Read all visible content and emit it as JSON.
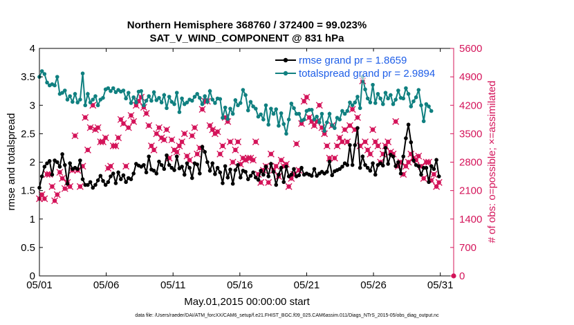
{
  "chart_data": {
    "type": "line",
    "title": "Northern Hemisphere 368760 / 372400 = 99.023%",
    "subtitle": "SAT_V_WIND_COMPONENT @ 831 hPa",
    "xlabel": "May.01,2015 00:00:00 start",
    "ylabel_left": "rmse and totalspread",
    "ylabel_right": "# of obs: o=possible; ×=assimilated",
    "footnote": "data file: /Users/raeder/DAI/ATM_forcXX/CAM6_setup/f.e21.FHIST_BGC.f09_025.CAM6assim.011/Diags_NTrS_2015-05/obs_diag_output.nc",
    "x_ticks": [
      "05/01",
      "05/06",
      "05/11",
      "05/16",
      "05/21",
      "05/26",
      "05/31"
    ],
    "x_tick_days": [
      1,
      6,
      11,
      16,
      21,
      26,
      31
    ],
    "xlim": [
      1,
      32
    ],
    "ylim_left": [
      0,
      4
    ],
    "y_ticks_left": [
      "0",
      "0.5",
      "1",
      "1.5",
      "2",
      "2.5",
      "3",
      "3.5",
      "4"
    ],
    "ylim_right": [
      0,
      5600
    ],
    "y_ticks_right": [
      "0",
      "700",
      "1400",
      "2100",
      "2800",
      "3500",
      "4200",
      "4900",
      "5600"
    ],
    "legend": [
      "rmse grand pr = 1.8659",
      "totalspread grand pr = 2.9894"
    ],
    "legend_position": "top-right",
    "colors": {
      "rmse": "#000000",
      "spread": "#108080",
      "obs": "#d4145a",
      "legend_text": "#1e5ee8",
      "right_axis": "#d4145a"
    },
    "series": [
      {
        "name": "rmse grand pr = 1.8659",
        "axis": "left",
        "values": [
          1.55,
          1.75,
          1.92,
          1.98,
          2.02,
          1.78,
          2.03,
          2.0,
          1.92,
          2.14,
          1.95,
          1.62,
          1.98,
          1.88,
          1.9,
          1.88,
          2.03,
          1.7,
          1.6,
          1.6,
          1.65,
          1.55,
          1.6,
          1.68,
          1.76,
          1.67,
          1.6,
          1.65,
          1.75,
          1.8,
          1.63,
          1.82,
          1.7,
          1.77,
          1.65,
          1.72,
          1.7,
          1.8,
          1.97,
          1.94,
          1.92,
          1.95,
          1.82,
          2.1,
          1.87,
          1.85,
          1.8,
          2.01,
          1.95,
          1.88,
          2.12,
          1.95,
          1.9,
          1.86,
          2.1,
          1.89,
          1.92,
          1.78,
          1.98,
          1.9,
          1.72,
          1.98,
          1.96,
          1.8,
          2.27,
          2.18,
          2.0,
          1.85,
          1.98,
          1.79,
          1.9,
          1.82,
          1.63,
          1.93,
          1.73,
          1.87,
          1.62,
          1.86,
          1.95,
          1.73,
          1.85,
          1.83,
          1.7,
          1.76,
          1.82,
          1.73,
          1.69,
          1.85,
          1.78,
          1.92,
          1.75,
          1.97,
          1.83,
          1.6,
          1.78,
          1.9,
          1.65,
          1.92,
          1.75,
          1.78,
          1.88,
          1.75,
          1.77,
          1.9,
          1.78,
          1.8,
          1.78,
          1.76,
          1.88,
          1.76,
          1.8,
          1.83,
          1.8,
          1.83,
          2.01,
          1.77,
          1.84,
          1.86,
          1.88,
          1.92,
          1.98,
          1.95,
          2.3,
          1.95,
          2.3,
          2.6,
          1.9,
          2.1,
          1.95,
          1.9,
          1.85,
          1.98,
          1.78,
          1.95,
          1.98,
          1.94,
          2.25,
          1.97,
          2.13,
          2.1,
          1.93,
          2.0,
          1.8,
          2.1,
          2.42,
          2.66,
          2.35,
          2.03,
          1.95,
          1.93,
          1.78,
          1.9,
          1.9,
          1.65,
          1.93,
          1.88,
          2.04,
          1.75
        ]
      },
      {
        "name": "totalspread grand pr = 2.9894",
        "axis": "left",
        "values": [
          3.5,
          3.6,
          3.55,
          3.4,
          3.35,
          3.37,
          3.35,
          3.5,
          3.2,
          3.22,
          3.26,
          3.1,
          3.16,
          3.06,
          3.2,
          3.05,
          3.1,
          3.56,
          3.0,
          3.2,
          3.05,
          3.1,
          3.16,
          3.0,
          3.1,
          3.13,
          3.28,
          3.3,
          3.25,
          3.3,
          3.23,
          3.27,
          3.24,
          3.26,
          3.12,
          3.22,
          3.04,
          3.14,
          3.05,
          3.24,
          3.25,
          3.0,
          3.08,
          3.16,
          3.08,
          3.23,
          3.09,
          3.13,
          3.05,
          3.18,
          2.95,
          3.15,
          3.06,
          3.02,
          3.22,
          2.88,
          3.12,
          3.02,
          3.05,
          3.1,
          3.08,
          3.15,
          3.2,
          3.13,
          3.02,
          3.16,
          3.06,
          3.25,
          3.1,
          3.04,
          3.12,
          3.11,
          2.78,
          2.96,
          2.76,
          2.94,
          2.85,
          3.09,
          3.0,
          3.04,
          3.27,
          3.18,
          2.91,
          3.06,
          2.98,
          2.94,
          2.8,
          2.84,
          2.75,
          3.0,
          2.66,
          2.94,
          2.85,
          2.93,
          2.64,
          2.86,
          2.67,
          2.5,
          2.75,
          3.03,
          2.95,
          2.85,
          2.85,
          2.73,
          2.75,
          2.9,
          2.92,
          2.92,
          2.75,
          2.8,
          2.7,
          2.85,
          2.55,
          2.7,
          2.85,
          2.65,
          2.6,
          2.78,
          2.75,
          2.9,
          2.85,
          2.9,
          3.05,
          3.0,
          3.05,
          3.15,
          2.95,
          3.5,
          3.28,
          3.12,
          3.05,
          3.36,
          3.04,
          3.2,
          3.12,
          3.02,
          3.22,
          3.12,
          3.18,
          3.02,
          3.1,
          3.26,
          3.13,
          3.12,
          3.3,
          3.2,
          2.98,
          3.07,
          3.14,
          3.27,
          3.0,
          2.72,
          3.02,
          2.98,
          2.9
        ]
      },
      {
        "name": "",
        "axis": "right",
        "marker": "circle-with-cross",
        "values": [
          1900,
          2000,
          1900,
          2500,
          2500,
          2200,
          1850,
          2000,
          2550,
          2400,
          2150,
          2300,
          2200,
          2600,
          3450,
          2600,
          2200,
          2700,
          3900,
          3100,
          3650,
          4200,
          3600,
          3650,
          3300,
          3300,
          3400,
          2650,
          2700,
          3200,
          3200,
          3400,
          3850,
          3750,
          2700,
          3650,
          3950,
          3800,
          4200,
          4300,
          4400,
          4150,
          4000,
          3700,
          3200,
          3100,
          3500,
          3650,
          3400,
          3350,
          3600,
          2900,
          3350,
          3100,
          3050,
          3200,
          3300,
          3500,
          2950,
          2850,
          3450,
          3650,
          3000,
          3150,
          4100,
          4300,
          4300,
          3700,
          3600,
          3500,
          3550,
          3000,
          3200,
          3900,
          3800,
          3300,
          2800,
          3100,
          3300,
          2750,
          2900,
          2850,
          2900,
          2900,
          2850,
          3300,
          2500,
          2300,
          2600,
          2700,
          2300,
          3000,
          2600,
          2700,
          2450,
          2850,
          2700,
          2750,
          2200,
          2400,
          2500,
          3250,
          2600,
          3750,
          4300,
          4400,
          3900,
          3800,
          3700,
          3800,
          4200,
          3650,
          3500,
          3200,
          2900,
          3700,
          2900,
          3200,
          3400,
          3300,
          3600,
          3300,
          3700,
          4100,
          3600,
          3900,
          3200,
          4800,
          3300,
          3100,
          3000,
          3600,
          3300,
          3200,
          2800,
          3000,
          3200,
          3300,
          3050,
          3000,
          3800,
          2700,
          2800,
          2500,
          2700,
          2800,
          3000,
          2900,
          2850,
          2950,
          2700,
          2400,
          2800,
          2800,
          2350,
          2500,
          2200,
          2300
        ]
      }
    ]
  }
}
